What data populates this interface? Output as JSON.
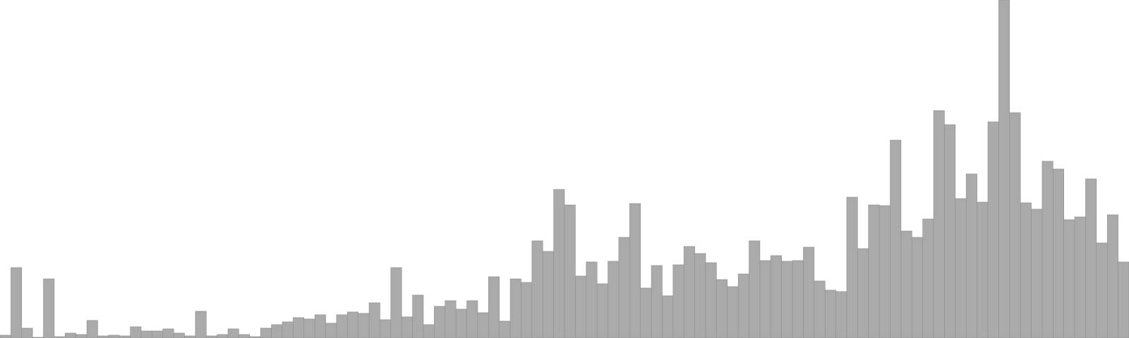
{
  "chart_data": {
    "type": "bar",
    "title": "",
    "xlabel": "",
    "ylabel": "",
    "ylim": [
      0,
      480
    ],
    "grid": false,
    "legend": "none",
    "bar_color": "#aaaaaa",
    "values": [
      4,
      100,
      14,
      1,
      84,
      2,
      7,
      5,
      25,
      3,
      4,
      3,
      16,
      10,
      10,
      13,
      7,
      3,
      38,
      3,
      5,
      13,
      5,
      2,
      14,
      19,
      23,
      29,
      27,
      33,
      21,
      33,
      37,
      35,
      50,
      26,
      100,
      30,
      61,
      19,
      45,
      53,
      41,
      53,
      36,
      87,
      24,
      84,
      79,
      138,
      123,
      211,
      189,
      88,
      108,
      77,
      109,
      143,
      191,
      71,
      103,
      60,
      104,
      130,
      120,
      107,
      83,
      73,
      91,
      138,
      110,
      117,
      109,
      110,
      129,
      81,
      68,
      66,
      200,
      127,
      189,
      188,
      281,
      152,
      143,
      169,
      323,
      303,
      198,
      233,
      193,
      307,
      480,
      320,
      192,
      183,
      251,
      240,
      168,
      172,
      226,
      135,
      175,
      108
    ]
  }
}
